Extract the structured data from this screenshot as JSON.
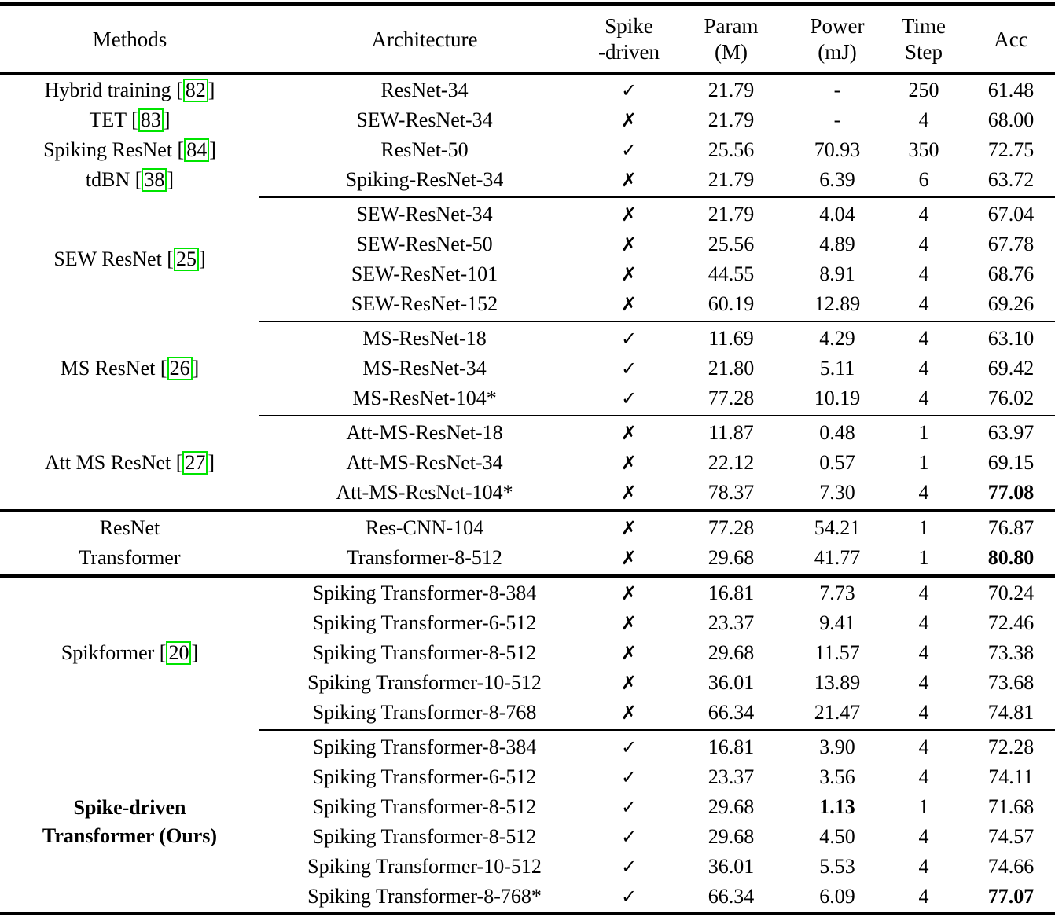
{
  "icons": {
    "check": "✓",
    "cross": "✗"
  },
  "colors": {
    "citation_box": "#00e400",
    "text": "#000000",
    "rule": "#000000"
  },
  "table": {
    "columns": [
      {
        "label": "Methods"
      },
      {
        "label": "Architecture"
      },
      {
        "line1": "Spike",
        "line2": "-driven"
      },
      {
        "line1": "Param",
        "line2": "(M)"
      },
      {
        "line1": "Power",
        "line2": "(mJ)"
      },
      {
        "line1": "Time",
        "line2": "Step"
      },
      {
        "label": "Acc"
      }
    ],
    "groups": [
      {
        "type": "per-row",
        "rule_after": "cmid",
        "rows": [
          {
            "method": {
              "label": "Hybrid training",
              "cite": "82"
            },
            "arch": "ResNet-34",
            "spike": "check",
            "param": "21.79",
            "power": "-",
            "step": "250",
            "acc": "61.48"
          },
          {
            "method": {
              "label": "TET",
              "cite": "83"
            },
            "arch": "SEW-ResNet-34",
            "spike": "cross",
            "param": "21.79",
            "power": "-",
            "step": "4",
            "acc": "68.00"
          },
          {
            "method": {
              "label": "Spiking ResNet",
              "cite": "84"
            },
            "arch": "ResNet-50",
            "spike": "check",
            "param": "25.56",
            "power": "70.93",
            "step": "350",
            "acc": "72.75"
          },
          {
            "method": {
              "label": "tdBN",
              "cite": "38"
            },
            "arch": "Spiking-ResNet-34",
            "spike": "cross",
            "param": "21.79",
            "power": "6.39",
            "step": "6",
            "acc": "63.72"
          }
        ]
      },
      {
        "type": "grouped",
        "method": {
          "label": "SEW ResNet",
          "cite": "25"
        },
        "rule_after": "cmid",
        "rows": [
          {
            "arch": "SEW-ResNet-34",
            "spike": "cross",
            "param": "21.79",
            "power": "4.04",
            "step": "4",
            "acc": "67.04"
          },
          {
            "arch": "SEW-ResNet-50",
            "spike": "cross",
            "param": "25.56",
            "power": "4.89",
            "step": "4",
            "acc": "67.78"
          },
          {
            "arch": "SEW-ResNet-101",
            "spike": "cross",
            "param": "44.55",
            "power": "8.91",
            "step": "4",
            "acc": "68.76"
          },
          {
            "arch": "SEW-ResNet-152",
            "spike": "cross",
            "param": "60.19",
            "power": "12.89",
            "step": "4",
            "acc": "69.26"
          }
        ]
      },
      {
        "type": "grouped",
        "method": {
          "label": "MS ResNet",
          "cite": "26"
        },
        "rule_after": "cmid",
        "rows": [
          {
            "arch": "MS-ResNet-18",
            "spike": "check",
            "param": "11.69",
            "power": "4.29",
            "step": "4",
            "acc": "63.10"
          },
          {
            "arch": "MS-ResNet-34",
            "spike": "check",
            "param": "21.80",
            "power": "5.11",
            "step": "4",
            "acc": "69.42"
          },
          {
            "arch": "MS-ResNet-104*",
            "spike": "check",
            "param": "77.28",
            "power": "10.19",
            "step": "4",
            "acc": "76.02"
          }
        ]
      },
      {
        "type": "grouped",
        "method": {
          "label": "Att MS ResNet",
          "cite": "27"
        },
        "rule_after": "full",
        "rows": [
          {
            "arch": "Att-MS-ResNet-18",
            "spike": "cross",
            "param": "11.87",
            "power": "0.48",
            "step": "1",
            "acc": "63.97"
          },
          {
            "arch": "Att-MS-ResNet-34",
            "spike": "cross",
            "param": "22.12",
            "power": "0.57",
            "step": "1",
            "acc": "69.15"
          },
          {
            "arch": "Att-MS-ResNet-104*",
            "spike": "cross",
            "param": "78.37",
            "power": "7.30",
            "step": "4",
            "acc": "77.08",
            "acc_bold": true
          }
        ]
      },
      {
        "type": "per-row",
        "rule_after": "full-heavy",
        "rows": [
          {
            "method": {
              "label": "ResNet"
            },
            "arch": "Res-CNN-104",
            "spike": "cross",
            "param": "77.28",
            "power": "54.21",
            "step": "1",
            "acc": "76.87"
          },
          {
            "method": {
              "label": "Transformer"
            },
            "arch": "Transformer-8-512",
            "spike": "cross",
            "param": "29.68",
            "power": "41.77",
            "step": "1",
            "acc": "80.80",
            "acc_bold": true
          }
        ]
      },
      {
        "type": "grouped",
        "method": {
          "label": "Spikformer",
          "cite": "20"
        },
        "rule_after": "cmid",
        "rows": [
          {
            "arch": "Spiking Transformer-8-384",
            "spike": "cross",
            "param": "16.81",
            "power": "7.73",
            "step": "4",
            "acc": "70.24"
          },
          {
            "arch": "Spiking Transformer-6-512",
            "spike": "cross",
            "param": "23.37",
            "power": "9.41",
            "step": "4",
            "acc": "72.46"
          },
          {
            "arch": "Spiking Transformer-8-512",
            "spike": "cross",
            "param": "29.68",
            "power": "11.57",
            "step": "4",
            "acc": "73.38"
          },
          {
            "arch": "Spiking Transformer-10-512",
            "spike": "cross",
            "param": "36.01",
            "power": "13.89",
            "step": "4",
            "acc": "73.68"
          },
          {
            "arch": "Spiking Transformer-8-768",
            "spike": "cross",
            "param": "66.34",
            "power": "21.47",
            "step": "4",
            "acc": "74.81"
          }
        ]
      },
      {
        "type": "grouped",
        "method": {
          "label": "Spike-driven\nTransformer (Ours)",
          "bold": true
        },
        "rule_after": "none",
        "rows": [
          {
            "arch": "Spiking Transformer-8-384",
            "spike": "check",
            "param": "16.81",
            "power": "3.90",
            "step": "4",
            "acc": "72.28"
          },
          {
            "arch": "Spiking Transformer-6-512",
            "spike": "check",
            "param": "23.37",
            "power": "3.56",
            "step": "4",
            "acc": "74.11"
          },
          {
            "arch": "Spiking Transformer-8-512",
            "spike": "check",
            "param": "29.68",
            "power": "1.13",
            "power_bold": true,
            "step": "1",
            "acc": "71.68"
          },
          {
            "arch": "Spiking Transformer-8-512",
            "spike": "check",
            "param": "29.68",
            "power": "4.50",
            "step": "4",
            "acc": "74.57"
          },
          {
            "arch": "Spiking Transformer-10-512",
            "spike": "check",
            "param": "36.01",
            "power": "5.53",
            "step": "4",
            "acc": "74.66"
          },
          {
            "arch": "Spiking Transformer-8-768*",
            "spike": "check",
            "param": "66.34",
            "power": "6.09",
            "step": "4",
            "acc": "77.07",
            "acc_bold": true
          }
        ]
      }
    ]
  }
}
